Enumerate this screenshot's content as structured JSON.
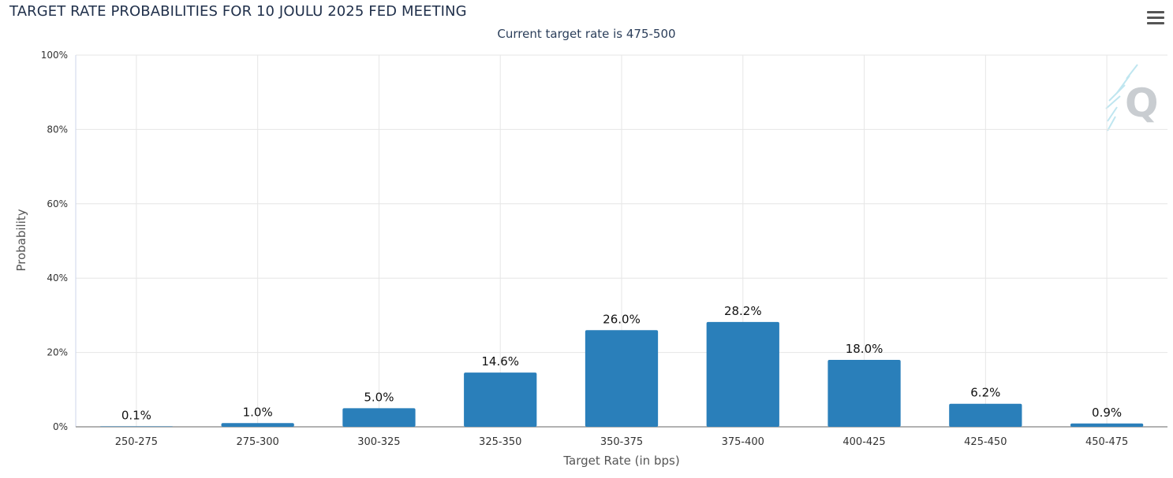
{
  "chart_data": {
    "type": "bar",
    "title": "TARGET RATE PROBABILITIES FOR 10 JOULU 2025 FED MEETING",
    "subtitle": "Current target rate is 475-500",
    "xlabel": "Target Rate (in bps)",
    "ylabel": "Probability",
    "categories": [
      "250-275",
      "275-300",
      "300-325",
      "325-350",
      "350-375",
      "375-400",
      "400-425",
      "425-450",
      "450-475"
    ],
    "values": [
      0.1,
      1.0,
      5.0,
      14.6,
      26.0,
      28.2,
      18.0,
      6.2,
      0.9
    ],
    "data_labels": [
      "0.1%",
      "1.0%",
      "5.0%",
      "14.6%",
      "26.0%",
      "28.2%",
      "18.0%",
      "6.2%",
      "0.9%"
    ],
    "ylim": [
      0,
      100
    ],
    "yticks": [
      0,
      20,
      40,
      60,
      80,
      100
    ],
    "ytick_labels": [
      "0%",
      "20%",
      "40%",
      "60%",
      "80%",
      "100%"
    ],
    "grid": true,
    "legend": "none",
    "colors": {
      "bar": "#2a7fba",
      "grid": "#e6e6e6",
      "axis": "#999999",
      "text": "#333333"
    }
  },
  "toolbar": {
    "menu_icon": "hamburger-menu-icon"
  },
  "watermark": {
    "icon": "q-logo-icon"
  }
}
